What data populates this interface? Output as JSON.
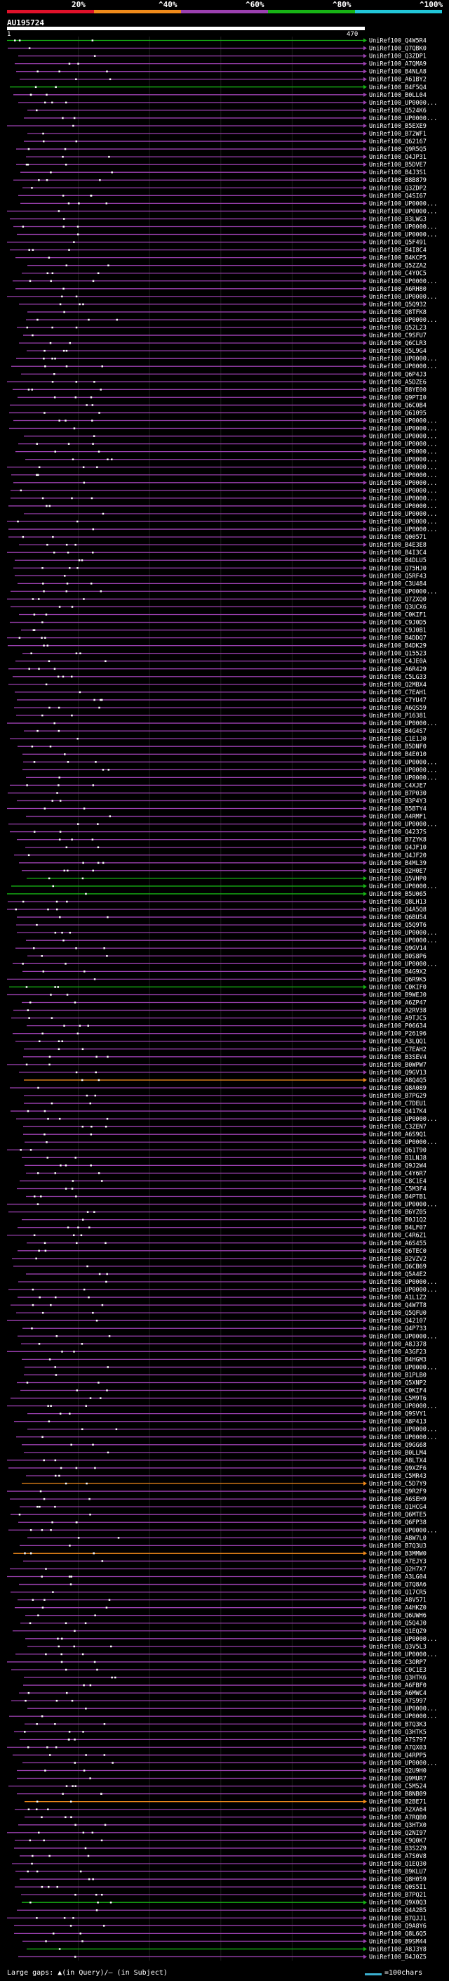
{
  "legend": {
    "labels": [
      "20%",
      "^40%",
      "^60%",
      "^80%",
      "^100%"
    ],
    "colors": [
      "#e0112a",
      "#f08a1a",
      "#9b40b0",
      "#17b315",
      "#22c6d9"
    ]
  },
  "query": {
    "name": "AU195724",
    "start": "1",
    "end": "470"
  },
  "footer": {
    "gaps_text": "Large gaps: ▲(in Query)/— (in Subject)",
    "scale_text": "=100chars"
  },
  "hits": [
    "UniRef100_Q4W5R4",
    "UniRef100_Q7QBK0",
    "UniRef100_Q3ZDP1",
    "UniRef100_A7QMA9",
    "UniRef100_B4NLA8",
    "UniRef100_A61BY2",
    "UniRef100_B4F5Q4",
    "UniRef100_B0LL04",
    "UniRef100_UP0000...",
    "UniRef100_Q524K6",
    "UniRef100_UP0000...",
    "UniRef100_B5EXE9",
    "UniRef100_B72WF1",
    "UniRef100_Q62167",
    "UniRef100_Q9R5Q5",
    "UniRef100_Q4JP31",
    "UniRef100_B5DVE7",
    "UniRef100_B4J3S1",
    "UniRef100_B8B879",
    "UniRef100_Q3ZDP2",
    "UniRef100_Q4SI67",
    "UniRef100_UP0000...",
    "UniRef100_UP0000...",
    "UniRef100_B3LWG3",
    "UniRef100_UP0000...",
    "UniRef100_UP0000...",
    "UniRef100_Q5F491",
    "UniRef100_B4I8C4",
    "UniRef100_B4KCP5",
    "UniRef100_Q5ZZA2",
    "UniRef100_C4YOC5",
    "UniRef100_UP0000...",
    "UniRef100_A6RH80",
    "UniRef100_UP0000...",
    "UniRef100_Q5Q932",
    "UniRef100_Q8TFK8",
    "UniRef100_UP0000...",
    "UniRef100_Q52L23",
    "UniRef100_C9SFU7",
    "UniRef100_Q6CLR3",
    "UniRef100_Q5L9G4",
    "UniRef100_UP0000...",
    "UniRef100_UP0000...",
    "UniRef100_Q6P4J3",
    "UniRef100_A5DZE6",
    "UniRef100_B8YE00",
    "UniRef100_Q9PTI0",
    "UniRef100_Q6C0B4",
    "UniRef100_Q61095",
    "UniRef100_UP0000...",
    "UniRef100_UP0000...",
    "UniRef100_UP0000...",
    "UniRef100_UP0000...",
    "UniRef100_UP0000...",
    "UniRef100_UP0000...",
    "UniRef100_UP0000...",
    "UniRef100_UP0000...",
    "UniRef100_UP0000...",
    "UniRef100_UP0000...",
    "UniRef100_UP0000...",
    "UniRef100_UP0000...",
    "UniRef100_UP0000...",
    "UniRef100_UP0000...",
    "UniRef100_UP0000...",
    "UniRef100_Q00571",
    "UniRef100_B4E3E8",
    "UniRef100_B4I3C4",
    "UniRef100_B4DLU5",
    "UniRef100_Q75HJ0",
    "UniRef100_Q5RF43",
    "UniRef100_C3U484",
    "UniRef100_UP0000...",
    "UniRef100_Q7ZXQ0",
    "UniRef100_Q3UCX6",
    "UniRef100_C0KIF1",
    "UniRef100_C9J0D5",
    "UniRef100_C9J0B1",
    "UniRef100_B4DDQ7",
    "UniRef100_B4DK29",
    "UniRef100_Q15523",
    "UniRef100_C4JE0A",
    "UniRef100_A6R429",
    "UniRef100_C5LG33",
    "UniRef100_Q2MBX4",
    "UniRef100_C7EAH1",
    "UniRef100_C7YU47",
    "UniRef100_A6QS59",
    "UniRef100_P16381",
    "UniRef100_UP0000...",
    "UniRef100_B4G4S7",
    "UniRef100_C1E1J0",
    "UniRef100_B5DNF0",
    "UniRef100_B4E010",
    "UniRef100_UP0000...",
    "UniRef100_UP0000...",
    "UniRef100_UP0000...",
    "UniRef100_C4XJE7",
    "UniRef100_B7P030",
    "UniRef100_B3P4Y3",
    "UniRef100_B5BTY4",
    "UniRef100_A4RMF1",
    "UniRef100_UP0000...",
    "UniRef100_Q4237S",
    "UniRef100_B7ZYK8",
    "UniRef100_Q4JF10",
    "UniRef100_Q4JF20",
    "UniRef100_B4ML39",
    "UniRef100_Q2H0E7",
    "UniRef100_Q5VHP0",
    "UniRef100_UP0000...",
    "UniRef100_B5U065",
    "UniRef100_Q8LH13",
    "UniRef100_Q4A5Q8",
    "UniRef100_Q6BU54",
    "UniRef100_Q5Q9T6",
    "UniRef100_UP0000...",
    "UniRef100_UP0000...",
    "UniRef100_Q9GV14",
    "UniRef100_B0S8P6",
    "UniRef100_UP0000...",
    "UniRef100_B4G9X2",
    "UniRef100_Q6R9K5",
    "UniRef100_C0KIF0",
    "UniRef100_B9WEJ0",
    "UniRef100_A6ZP47",
    "UniRef100_A2RV38",
    "UniRef100_A9TJC5",
    "UniRef100_P06634",
    "UniRef100_P26196",
    "UniRef100_A3LQQ1",
    "UniRef100_C7EAH2",
    "UniRef100_B3SEV4",
    "UniRef100_B0WPW7",
    "UniRef100_Q9GV13",
    "UniRef100_A8Q4Q5",
    "UniRef100_Q8A089",
    "UniRef100_B7PG29",
    "UniRef100_C7DEU1",
    "UniRef100_Q417K4",
    "UniRef100_UP0000...",
    "UniRef100_C3ZEN7",
    "UniRef100_A6S9Q1",
    "UniRef100_UP0000...",
    "UniRef100_Q61T90",
    "UniRef100_B1LNJ8",
    "UniRef100_Q9J2W4",
    "UniRef100_C4Y6R7",
    "UniRef100_C8C1E4",
    "UniRef100_C5M3F4",
    "UniRef100_B4PTB1",
    "UniRef100_UP0000...",
    "UniRef100_B6YZ05",
    "UniRef100_B0J1Q2",
    "UniRef100_B4LF07",
    "UniRef100_C4R6Z1",
    "UniRef100_A6S455",
    "UniRef100_Q6TEC0",
    "UniRef100_B2VZV2",
    "UniRef100_Q6CB69",
    "UniRef100_Q5A4E2",
    "UniRef100_UP0000...",
    "UniRef100_UP0000...",
    "UniRef100_A1L1Z2",
    "UniRef100_Q4W7T8",
    "UniRef100_Q5QFU0",
    "UniRef100_Q42107",
    "UniRef100_Q4P733",
    "UniRef100_UP0000...",
    "UniRef100_A8J378",
    "UniRef100_A3GF23",
    "UniRef100_B4HGM3",
    "UniRef100_UP0000...",
    "UniRef100_B1PLB0",
    "UniRef100_Q5XNP2",
    "UniRef100_C0KIF4",
    "UniRef100_C5M9T6",
    "UniRef100_UP0000...",
    "UniRef100_Q9SVY1",
    "UniRef100_A8P413",
    "UniRef100_UP0000...",
    "UniRef100_UP0000...",
    "UniRef100_Q9GG68",
    "UniRef100_B0LLM4",
    "UniRef100_A8LTX4",
    "UniRef100_Q9XZF6",
    "UniRef100_C5MR43",
    "UniRef100_C5D7Y9",
    "UniRef100_Q9R2F9",
    "UniRef100_A6SEH9",
    "UniRef100_Q1HCG4",
    "UniRef100_Q6MTE5",
    "UniRef100_Q6FP38",
    "UniRef100_UP0000...",
    "UniRef100_A8W7L0",
    "UniRef100_B7Q3U3",
    "UniRef100_B3MMW0",
    "UniRef100_A7EJY3",
    "UniRef100_Q2H7X7",
    "UniRef100_A3LG04",
    "UniRef100_Q7Q8A6",
    "UniRef100_Q17CR5",
    "UniRef100_A8V571",
    "UniRef100_A4HKZ0",
    "UniRef100_Q6UWH6",
    "UniRef100_Q5Q4J0",
    "UniRef100_Q1EQZ9",
    "UniRef100_UP0000...",
    "UniRef100_Q3V5L3",
    "UniRef100_UP0000...",
    "UniRef100_C3ORP7",
    "UniRef100_C0C1E3",
    "UniRef100_Q3HTK6",
    "UniRef100_A6FBF0",
    "UniRef100_A6MWC4",
    "UniRef100_A7S997",
    "UniRef100_UP0000...",
    "UniRef100_UP0000...",
    "UniRef100_B7Q3K3",
    "UniRef100_Q3HTK5",
    "UniRef100_A7S797",
    "UniRef100_A7QX03",
    "UniRef100_Q4RPP5",
    "UniRef100_UP0000...",
    "UniRef100_Q2U9H0",
    "UniRef100_Q9MUR7",
    "UniRef100_C5M524",
    "UniRef100_B8NB09",
    "UniRef100_B2BE71",
    "UniRef100_A2XA64",
    "UniRef100_A7RQB0",
    "UniRef100_Q3HTX0",
    "UniRef100_Q2NI97",
    "UniRef100_C9Q0K7",
    "UniRef100_B3S2Z9",
    "UniRef100_A7S0V8",
    "UniRef100_Q1EQ30",
    "UniRef100_B9KLU7",
    "UniRef100_Q8H059",
    "UniRef100_Q0S5I1",
    "UniRef100_B7PQ21",
    "UniRef100_Q9X0Q3",
    "UniRef100_Q4A2B5",
    "UniRef100_B7QJJ1",
    "UniRef100_Q9A8Y6",
    "UniRef100_Q8L6Q5",
    "UniRef100_B9SM44",
    "UniRef100_A8J3Y8",
    "UniRef100_B4J0Z5"
  ]
}
